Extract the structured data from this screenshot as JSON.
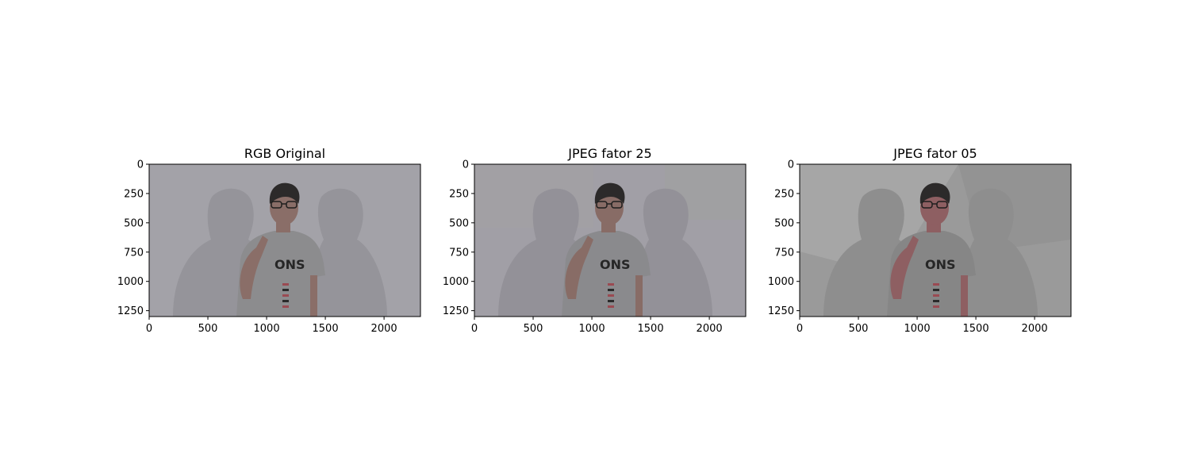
{
  "figure": {
    "panels": [
      {
        "title": "RGB Original",
        "variant": "original",
        "bg_color": "#a3a2a8",
        "shadow_color": "#95949a",
        "shirt_color": "#8c8c8e",
        "skin_color": "#8a6e68",
        "xticks": [
          "0",
          "500",
          "1000",
          "1500",
          "2000"
        ],
        "yticks": [
          "0",
          "250",
          "500",
          "750",
          "1000",
          "1250"
        ]
      },
      {
        "title": "JPEG fator 25",
        "variant": "jpeg25",
        "bg_color": "#a19fa6",
        "shadow_color": "#939198",
        "shirt_color": "#8a8a8d",
        "skin_color": "#886c66",
        "xticks": [
          "0",
          "500",
          "1000",
          "1500",
          "2000"
        ],
        "yticks": [
          "0",
          "250",
          "500",
          "750",
          "1000",
          "1250"
        ]
      },
      {
        "title": "JPEG fator 05",
        "variant": "jpeg05",
        "bg_color": "#9a9a9a",
        "shadow_color": "#8e8e8e",
        "shirt_color": "#868686",
        "skin_color": "#8e5f62",
        "xticks": [
          "0",
          "500",
          "1000",
          "1500",
          "2000"
        ],
        "yticks": [
          "0",
          "250",
          "500",
          "750",
          "1000",
          "1250"
        ]
      }
    ],
    "x_domain": [
      0,
      2310
    ],
    "y_domain": [
      0,
      1300
    ],
    "xtick_values": [
      0,
      500,
      1000,
      1500,
      2000
    ],
    "ytick_values": [
      0,
      250,
      500,
      750,
      1000,
      1250
    ]
  }
}
